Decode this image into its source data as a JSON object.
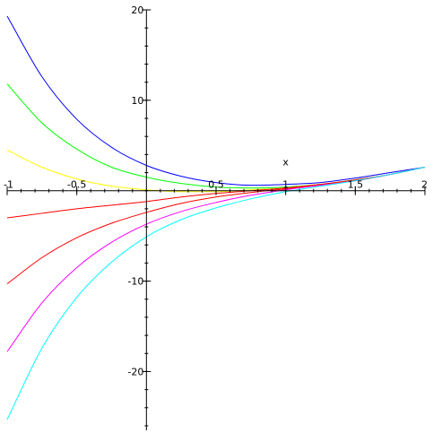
{
  "chart_data": {
    "type": "line",
    "xlabel": "x",
    "ylabel": "",
    "xlim": [
      -1,
      2
    ],
    "ylim": [
      -26.5,
      20
    ],
    "x_ticks": [
      {
        "value": -1,
        "label": "-1"
      },
      {
        "value": -0.5,
        "label": "-0.5"
      },
      {
        "value": 0.5,
        "label": "0.5"
      },
      {
        "value": 1,
        "label": "1"
      },
      {
        "value": 1.5,
        "label": "1.5"
      },
      {
        "value": 2,
        "label": "2"
      }
    ],
    "y_ticks": [
      {
        "value": 20,
        "label": "20"
      },
      {
        "value": 10,
        "label": "10"
      },
      {
        "value": -10,
        "label": "-10"
      },
      {
        "value": -20,
        "label": "-20"
      }
    ],
    "x": [
      -1,
      -0.75,
      -0.5,
      -0.25,
      0,
      0.25,
      0.5,
      0.75,
      1,
      1.25,
      1.5,
      1.75,
      2
    ],
    "series": [
      {
        "color": "#0000ff",
        "values": [
          19.3,
          12.6,
          7.9,
          4.8,
          2.8,
          1.6,
          0.9,
          0.6,
          0.7,
          0.9,
          1.4,
          2.0,
          2.6
        ]
      },
      {
        "color": "#00ff00",
        "values": [
          11.8,
          7.5,
          4.6,
          2.6,
          1.5,
          0.8,
          0.4,
          0.3,
          0.4,
          0.7,
          1.2,
          1.8,
          2.6
        ]
      },
      {
        "color": "#ffff00",
        "values": [
          4.5,
          2.6,
          1.3,
          0.5,
          0.1,
          -0.1,
          -0.1,
          0.1,
          0.3,
          0.7,
          1.1,
          1.8,
          2.6
        ]
      },
      {
        "color": "#ff0000",
        "values": [
          -3.0,
          -2.5,
          -2.0,
          -1.6,
          -1.2,
          -0.7,
          -0.3,
          0.0,
          0.3,
          0.7,
          1.2,
          1.8,
          2.6
        ]
      },
      {
        "color": "#ff0000",
        "values": [
          -10.3,
          -7.4,
          -5.2,
          -3.6,
          -2.4,
          -1.4,
          -0.7,
          -0.2,
          0.2,
          0.6,
          1.1,
          1.8,
          2.6
        ]
      },
      {
        "color": "#ff00ff",
        "values": [
          -17.8,
          -12.4,
          -8.5,
          -5.7,
          -3.7,
          -2.3,
          -1.3,
          -0.5,
          0.1,
          0.6,
          1.1,
          1.8,
          2.6
        ]
      },
      {
        "color": "#00ffff",
        "values": [
          -25.3,
          -17.4,
          -11.8,
          -7.9,
          -5.1,
          -3.2,
          -1.9,
          -0.9,
          -0.1,
          0.5,
          1.1,
          1.8,
          2.6
        ]
      }
    ]
  }
}
